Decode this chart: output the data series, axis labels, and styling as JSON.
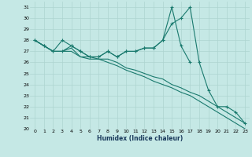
{
  "bg_color": "#c5e8e5",
  "grid_color": "#aed4d0",
  "line_color": "#1a7a6e",
  "xlabel": "Humidex (Indice chaleur)",
  "xlim": [
    -0.5,
    23.5
  ],
  "ylim": [
    20,
    31.5
  ],
  "yticks": [
    20,
    21,
    22,
    23,
    24,
    25,
    26,
    27,
    28,
    29,
    30,
    31
  ],
  "xticks": [
    0,
    1,
    2,
    3,
    4,
    5,
    6,
    7,
    8,
    9,
    10,
    11,
    12,
    13,
    14,
    15,
    16,
    17,
    18,
    19,
    20,
    21,
    22,
    23
  ],
  "line1_x": [
    0,
    1,
    2,
    3,
    4,
    5,
    6,
    7,
    8,
    9,
    10,
    11,
    12,
    13,
    14,
    15,
    16,
    17
  ],
  "line1_y": [
    28.0,
    27.5,
    27.0,
    28.0,
    27.5,
    27.0,
    26.5,
    26.5,
    27.0,
    26.5,
    27.0,
    27.0,
    27.3,
    27.3,
    28.0,
    31.0,
    27.5,
    26.0
  ],
  "line2_x": [
    0,
    1,
    2,
    3,
    4,
    5,
    6,
    7,
    8,
    9,
    10,
    11,
    12,
    13,
    14,
    15,
    16,
    17,
    18,
    19,
    20,
    21,
    22,
    23
  ],
  "line2_y": [
    28.0,
    27.5,
    27.0,
    27.0,
    27.5,
    27.0,
    26.5,
    26.5,
    27.0,
    26.5,
    27.0,
    27.0,
    27.3,
    27.3,
    28.0,
    29.5,
    30.0,
    31.0,
    26.0,
    23.5,
    22.0,
    22.0,
    21.5,
    20.5
  ],
  "line3_x": [
    0,
    1,
    2,
    3,
    4,
    5,
    6,
    7,
    8,
    9,
    10,
    11,
    12,
    13,
    14,
    15,
    16,
    17,
    18,
    19,
    20,
    21,
    22,
    23
  ],
  "line3_y": [
    28.0,
    27.5,
    27.0,
    27.0,
    27.3,
    26.5,
    26.5,
    26.3,
    26.3,
    26.0,
    25.5,
    25.3,
    25.0,
    24.7,
    24.5,
    24.0,
    23.7,
    23.3,
    23.0,
    22.5,
    22.0,
    21.5,
    21.0,
    20.5
  ],
  "line4_x": [
    0,
    1,
    2,
    3,
    4,
    5,
    6,
    7,
    8,
    9,
    10,
    11,
    12,
    13,
    14,
    15,
    16,
    17,
    18,
    19,
    20,
    21,
    22,
    23
  ],
  "line4_y": [
    28.0,
    27.5,
    27.0,
    27.0,
    27.0,
    26.5,
    26.3,
    26.3,
    26.0,
    25.7,
    25.3,
    25.0,
    24.7,
    24.3,
    24.0,
    23.7,
    23.3,
    23.0,
    22.5,
    22.0,
    21.5,
    21.0,
    20.5,
    20.0
  ],
  "tick_fontsize": 4.5,
  "xlabel_fontsize": 5.5,
  "lw": 0.8,
  "marker_size": 3.0
}
